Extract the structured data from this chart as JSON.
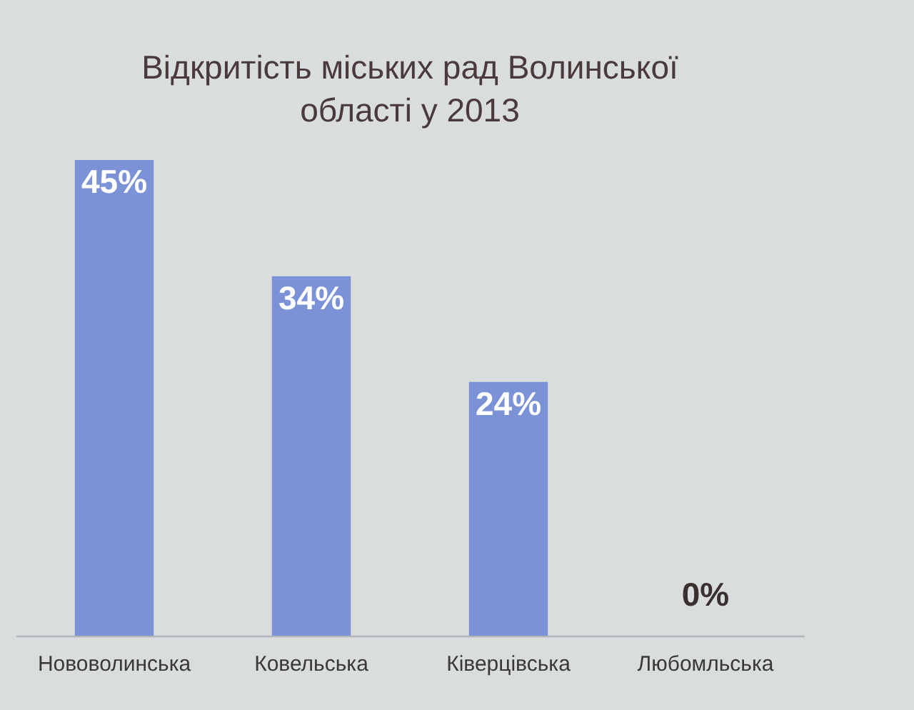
{
  "chart_data": {
    "type": "bar",
    "title": "Відкритість міських рад Волинської\nобласті у 2013",
    "categories": [
      "Нововолинська",
      "Ковельська",
      "Ківерцівська",
      "Любомльська"
    ],
    "values": [
      45,
      34,
      24,
      0
    ],
    "value_labels": [
      "45%",
      "34%",
      "24%",
      "0%"
    ],
    "color": "#7b92d6"
  }
}
